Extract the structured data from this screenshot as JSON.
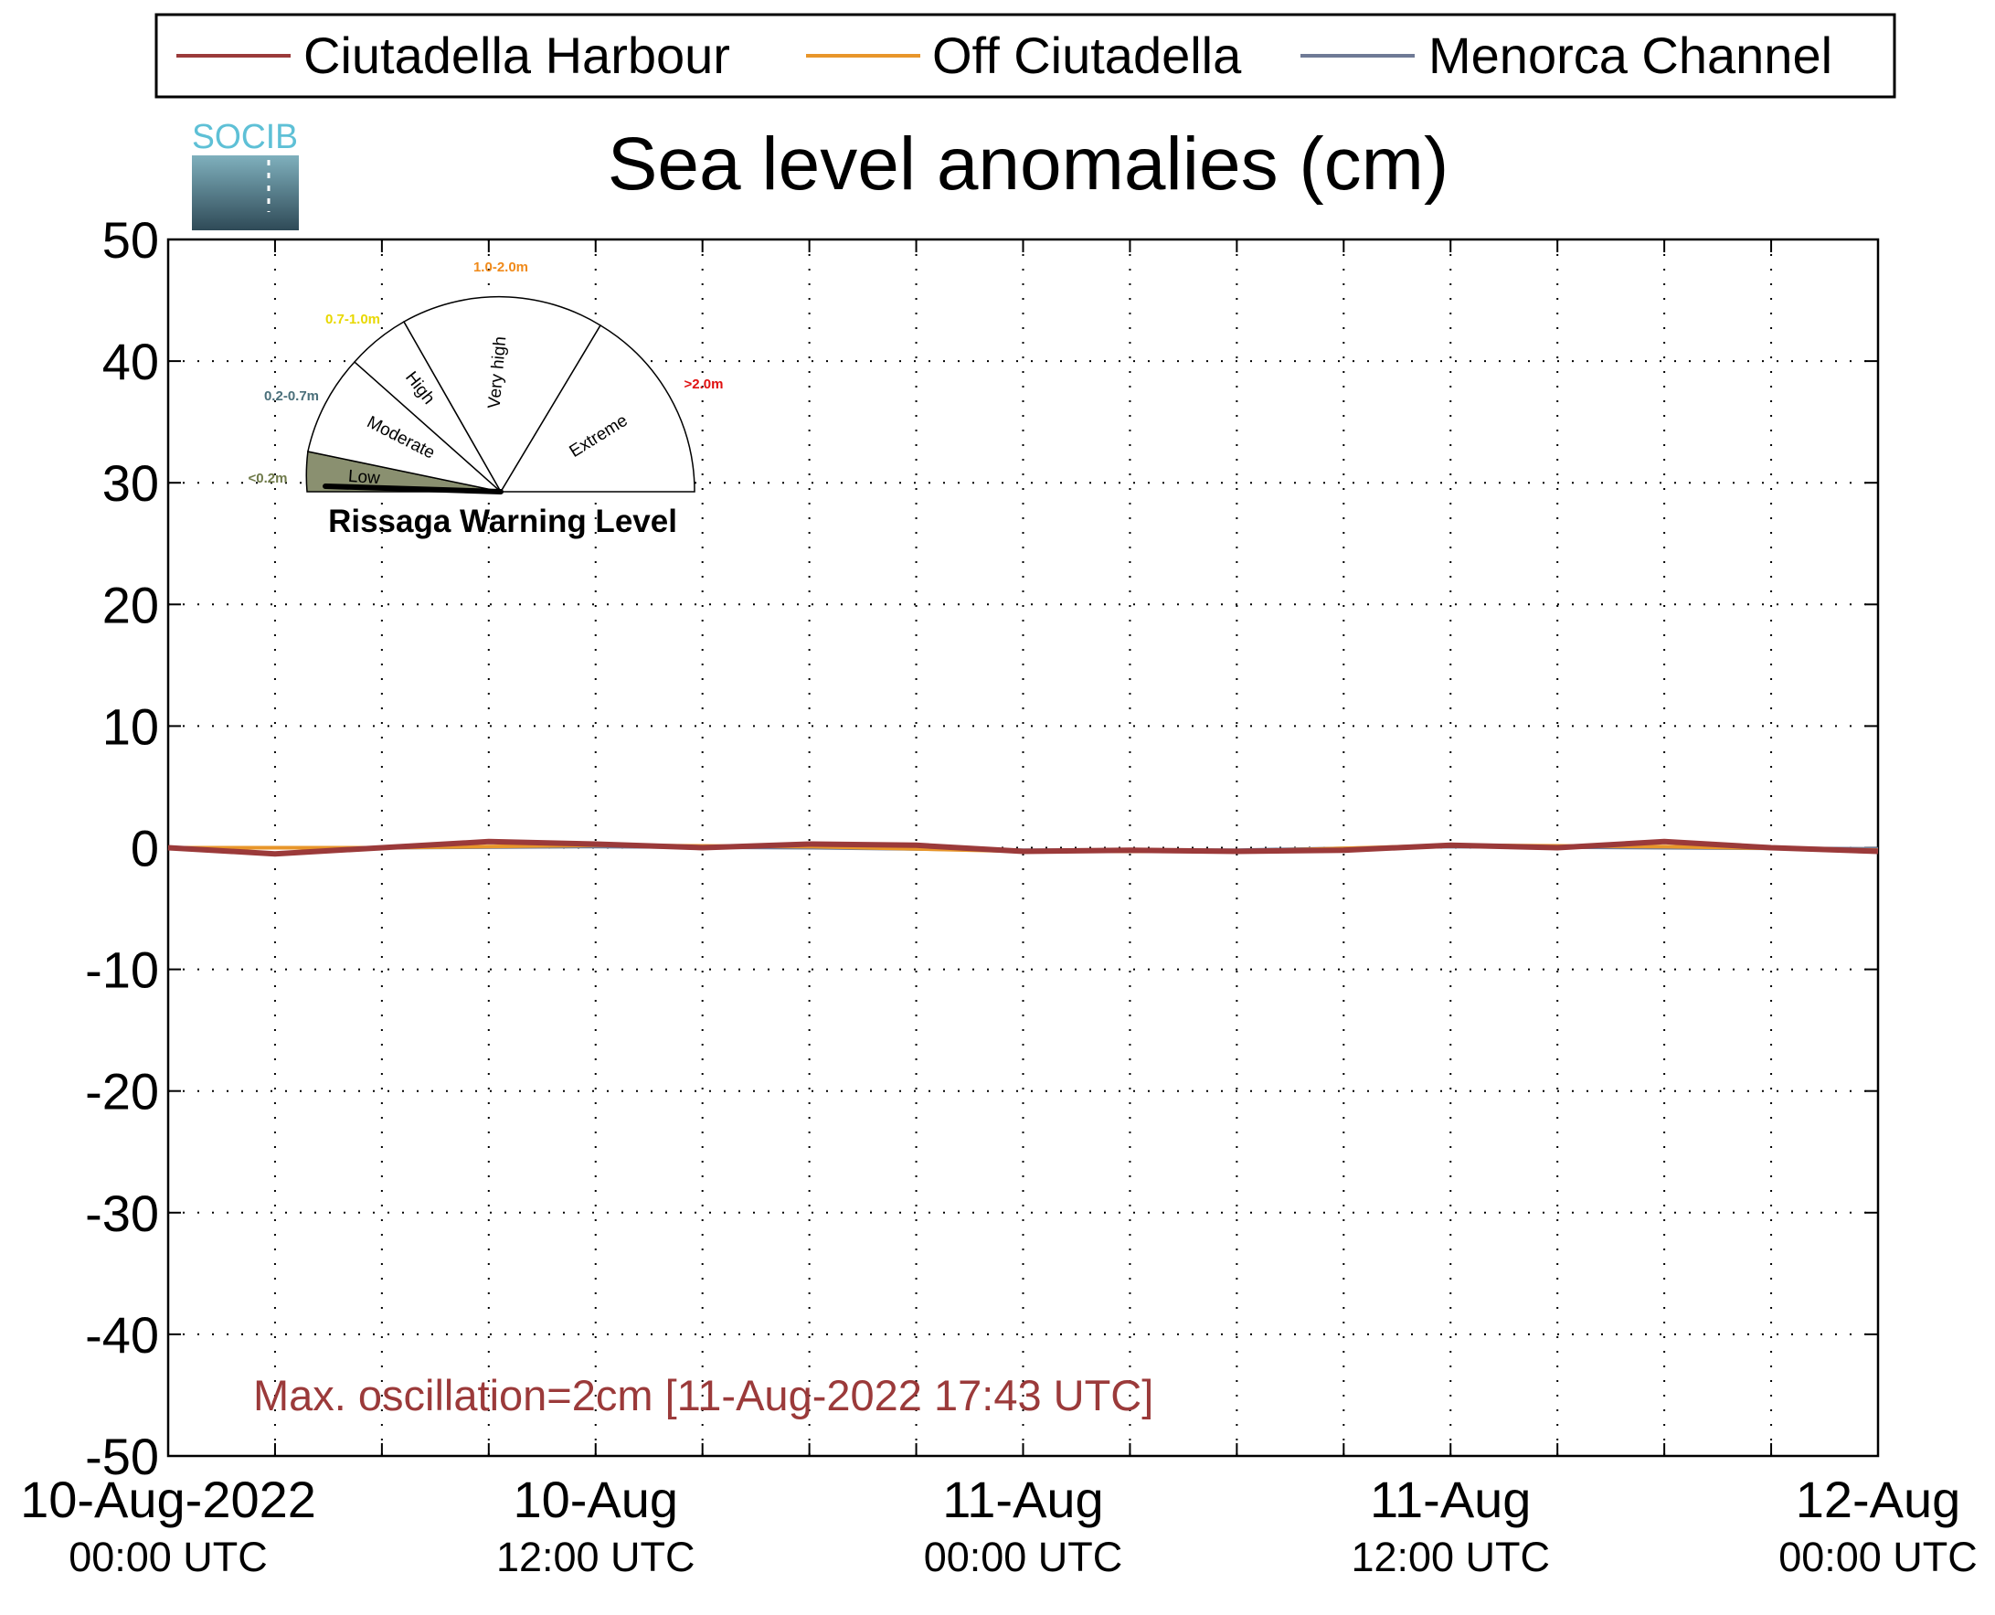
{
  "chart_data": {
    "type": "line",
    "title": "Sea level anomalies (cm)",
    "xlabel": "",
    "ylabel": "",
    "ylim": [
      -50,
      50
    ],
    "yticks": [
      50,
      40,
      30,
      20,
      10,
      0,
      -10,
      -20,
      -30,
      -40,
      -50
    ],
    "xlim": [
      "2022-08-10T00:00",
      "2022-08-12T00:00"
    ],
    "xticks": [
      {
        "date": "10-Aug-2022",
        "time": "00:00 UTC",
        "at": "2022-08-10T00:00"
      },
      {
        "date": "10-Aug",
        "time": "12:00 UTC",
        "at": "2022-08-10T12:00"
      },
      {
        "date": "11-Aug",
        "time": "00:00 UTC",
        "at": "2022-08-11T00:00"
      },
      {
        "date": "11-Aug",
        "time": "12:00 UTC",
        "at": "2022-08-11T12:00"
      },
      {
        "date": "12-Aug",
        "time": "00:00 UTC",
        "at": "2022-08-12T00:00"
      }
    ],
    "minor_xticks_hours": 3,
    "grid": true,
    "legend_position": "top",
    "series": [
      {
        "name": "Ciutadella Harbour",
        "color": "#9b3a3a",
        "x": [
          "2022-08-10T00:00",
          "2022-08-10T03:00",
          "2022-08-10T06:00",
          "2022-08-10T09:00",
          "2022-08-10T12:00",
          "2022-08-10T15:00",
          "2022-08-10T18:00",
          "2022-08-10T21:00",
          "2022-08-11T00:00",
          "2022-08-11T03:00",
          "2022-08-11T06:00",
          "2022-08-11T09:00",
          "2022-08-11T12:00",
          "2022-08-11T15:00",
          "2022-08-11T18:00",
          "2022-08-11T21:00",
          "2022-08-12T00:00"
        ],
        "y": [
          0,
          -0.5,
          0,
          0.5,
          0.3,
          0,
          0.3,
          0.2,
          -0.3,
          -0.2,
          -0.3,
          -0.2,
          0.2,
          0,
          0.5,
          0,
          -0.3
        ]
      },
      {
        "name": "Off Ciutadella",
        "color": "#e8962a",
        "x": [
          "2022-08-10T00:00",
          "2022-08-10T06:00",
          "2022-08-10T12:00",
          "2022-08-10T18:00",
          "2022-08-11T00:00",
          "2022-08-11T06:00",
          "2022-08-11T12:00",
          "2022-08-11T18:00",
          "2022-08-12T00:00"
        ],
        "y": [
          0,
          0,
          0.2,
          0.1,
          -0.3,
          -0.3,
          0.2,
          0.1,
          -0.2
        ]
      },
      {
        "name": "Menorca Channel",
        "color": "#6f7a96",
        "x": [
          "2022-08-10T00:00",
          "2022-08-10T06:00",
          "2022-08-10T12:00",
          "2022-08-10T18:00",
          "2022-08-11T00:00",
          "2022-08-11T06:00",
          "2022-08-11T12:00",
          "2022-08-11T18:00",
          "2022-08-12T00:00"
        ],
        "y": [
          0,
          0,
          0.1,
          0,
          -0.2,
          -0.2,
          0.1,
          0,
          -0.1
        ]
      }
    ],
    "annotations": [
      {
        "text": "Max. oscillation=2cm [11-Aug-2022 17:43 UTC]",
        "color": "#9b3a3a"
      }
    ]
  },
  "logo": {
    "text": "SOCIB"
  },
  "gauge": {
    "title": "Rissaga Warning Level",
    "sectors": [
      {
        "label": "Low",
        "range": "<0.2m",
        "range_color": "#6f7a4a",
        "fill": "#8a9070"
      },
      {
        "label": "Moderate",
        "range": "0.2-0.7m",
        "range_color": "#4a6f7a",
        "fill": "#ffffff"
      },
      {
        "label": "High",
        "range": "0.7-1.0m",
        "range_color": "#e8d800",
        "fill": "#ffffff"
      },
      {
        "label": "Very high",
        "range": "1.0-2.0m",
        "range_color": "#f08a1a",
        "fill": "#ffffff"
      },
      {
        "label": "Extreme",
        "range": ">2.0m",
        "range_color": "#e01010",
        "fill": "#ffffff"
      }
    ],
    "current_level": "Low"
  }
}
